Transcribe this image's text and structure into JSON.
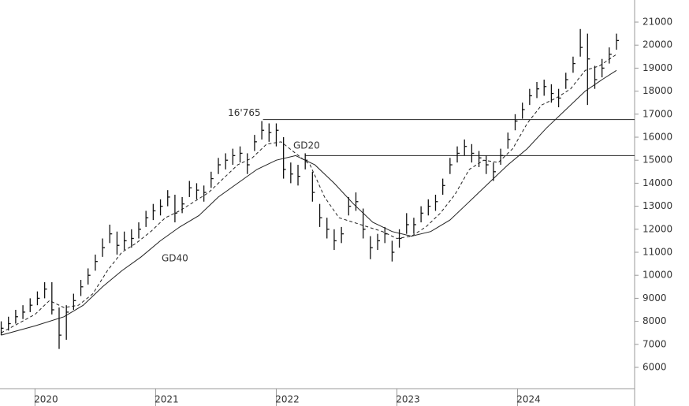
{
  "chart_data": {
    "type": "ohlc",
    "x": [
      2019.72,
      2019.78,
      2019.84,
      2019.9,
      2019.96,
      2020.02,
      2020.08,
      2020.14,
      2020.2,
      2020.26,
      2020.32,
      2020.38,
      2020.44,
      2020.5,
      2020.56,
      2020.62,
      2020.68,
      2020.74,
      2020.8,
      2020.86,
      2020.92,
      2020.98,
      2021.04,
      2021.1,
      2021.16,
      2021.22,
      2021.28,
      2021.34,
      2021.4,
      2021.46,
      2021.52,
      2021.58,
      2021.64,
      2021.7,
      2021.76,
      2021.82,
      2021.88,
      2021.94,
      2022.0,
      2022.06,
      2022.12,
      2022.18,
      2022.24,
      2022.3,
      2022.36,
      2022.42,
      2022.48,
      2022.54,
      2022.6,
      2022.66,
      2022.72,
      2022.78,
      2022.84,
      2022.9,
      2022.96,
      2023.02,
      2023.08,
      2023.14,
      2023.2,
      2023.26,
      2023.32,
      2023.38,
      2023.44,
      2023.5,
      2023.56,
      2023.62,
      2023.68,
      2023.74,
      2023.8,
      2023.86,
      2023.92,
      2023.98,
      2024.04,
      2024.1,
      2024.16,
      2024.22,
      2024.28,
      2024.34,
      2024.4,
      2024.46,
      2024.52,
      2024.58,
      2024.64,
      2024.7,
      2024.76,
      2024.82
    ],
    "high": [
      8000,
      8200,
      8500,
      8700,
      9000,
      9300,
      9700,
      9700,
      8600,
      8700,
      9200,
      9800,
      10300,
      10900,
      11600,
      12200,
      11900,
      11900,
      12000,
      12300,
      12800,
      13100,
      13300,
      13700,
      13500,
      13400,
      14100,
      14000,
      13900,
      14500,
      15100,
      15300,
      15500,
      15600,
      15300,
      16100,
      16700,
      16600,
      16600,
      16000,
      14900,
      14800,
      15300,
      14500,
      13100,
      12500,
      12000,
      12100,
      13400,
      13600,
      12900,
      11700,
      11800,
      12100,
      11500,
      12000,
      12700,
      12500,
      13000,
      13300,
      13500,
      14200,
      15100,
      15600,
      15900,
      15700,
      15400,
      15200,
      14900,
      15500,
      16200,
      17000,
      17500,
      18100,
      18400,
      18500,
      18300,
      18100,
      18800,
      19500,
      20700,
      20500,
      19100,
      19400,
      19900,
      20500
    ],
    "low": [
      7400,
      7600,
      7900,
      8100,
      8400,
      8700,
      9000,
      8300,
      6800,
      7200,
      8500,
      9100,
      9600,
      10200,
      10800,
      11400,
      10900,
      11100,
      11200,
      11600,
      12100,
      12400,
      12600,
      13000,
      12300,
      12700,
      13400,
      13300,
      13200,
      13800,
      14400,
      14600,
      14800,
      14900,
      14400,
      15400,
      15900,
      15800,
      15600,
      14200,
      14000,
      13900,
      14600,
      13200,
      12100,
      11600,
      11100,
      11400,
      12600,
      12800,
      11600,
      10700,
      11100,
      11400,
      10600,
      11200,
      11800,
      11800,
      12300,
      12600,
      12800,
      13500,
      14400,
      14900,
      15200,
      14900,
      14700,
      14400,
      14100,
      14800,
      15500,
      16300,
      16800,
      17400,
      17700,
      17800,
      17500,
      17300,
      18100,
      18800,
      19500,
      17400,
      18100,
      18600,
      19200,
      19800
    ],
    "close": [
      7700,
      7900,
      8200,
      8400,
      8700,
      9000,
      9400,
      8500,
      7400,
      8400,
      8900,
      9500,
      10000,
      10600,
      11200,
      11800,
      11300,
      11500,
      11600,
      12000,
      12500,
      12800,
      13000,
      13400,
      12700,
      13100,
      13800,
      13700,
      13600,
      14200,
      14800,
      15000,
      15200,
      15300,
      14800,
      15800,
      16300,
      16200,
      16300,
      14600,
      14400,
      14300,
      15000,
      13600,
      12500,
      12000,
      11500,
      11800,
      13000,
      13200,
      12000,
      11200,
      11500,
      11800,
      11000,
      11600,
      12200,
      12200,
      12700,
      13000,
      13200,
      13900,
      14800,
      15300,
      15600,
      15300,
      15100,
      14800,
      14500,
      15200,
      15900,
      16700,
      17200,
      17800,
      18100,
      18200,
      17900,
      17700,
      18500,
      19200,
      19900,
      19400,
      18500,
      19000,
      19600,
      20200
    ],
    "color": "#111111",
    "series": [
      {
        "name": "GD20",
        "dashed": true,
        "x": [
          2019.72,
          2020.0,
          2020.12,
          2020.24,
          2020.36,
          2020.48,
          2020.6,
          2020.72,
          2020.84,
          2020.96,
          2021.08,
          2021.2,
          2021.32,
          2021.44,
          2021.56,
          2021.68,
          2021.8,
          2021.92,
          2022.04,
          2022.16,
          2022.28,
          2022.4,
          2022.52,
          2022.64,
          2022.76,
          2022.88,
          2023.0,
          2023.12,
          2023.24,
          2023.36,
          2023.48,
          2023.6,
          2023.72,
          2023.84,
          2023.96,
          2024.08,
          2024.2,
          2024.32,
          2024.44,
          2024.56,
          2024.68,
          2024.82
        ],
        "values": [
          7500,
          8300,
          8900,
          8600,
          8700,
          9200,
          10200,
          11000,
          11400,
          11900,
          12500,
          12800,
          13200,
          13600,
          14200,
          14800,
          15100,
          15700,
          15800,
          15300,
          14800,
          13400,
          12500,
          12300,
          12100,
          11900,
          11600,
          11700,
          12100,
          12700,
          13500,
          14600,
          15000,
          14900,
          15500,
          16600,
          17400,
          17700,
          18100,
          18900,
          19100,
          19600
        ]
      },
      {
        "name": "GD40",
        "dashed": false,
        "x": [
          2019.72,
          2020.0,
          2020.24,
          2020.4,
          2020.56,
          2020.72,
          2020.88,
          2021.04,
          2021.2,
          2021.36,
          2021.52,
          2021.68,
          2021.84,
          2022.0,
          2022.16,
          2022.32,
          2022.48,
          2022.64,
          2022.8,
          2022.96,
          2023.12,
          2023.28,
          2023.44,
          2023.6,
          2023.76,
          2023.92,
          2024.08,
          2024.24,
          2024.4,
          2024.56,
          2024.7,
          2024.82
        ],
        "values": [
          7400,
          7800,
          8200,
          8700,
          9500,
          10200,
          10800,
          11500,
          12100,
          12600,
          13400,
          14000,
          14600,
          15000,
          15200,
          14800,
          14000,
          13100,
          12300,
          11900,
          11700,
          11900,
          12400,
          13200,
          14000,
          14800,
          15500,
          16400,
          17200,
          18000,
          18500,
          18900
        ]
      }
    ],
    "levels": [
      {
        "start": 2021.89,
        "value": {
          "value": 16765,
          "label": "16'765"
        }
      },
      {
        "start": 2022.24,
        "value": 15200
      }
    ],
    "xlim": [
      2019.71,
      2024.97
    ],
    "xticks": [
      2020,
      2021,
      2022,
      2023,
      2024
    ],
    "ylim": [
      5075,
      21960
    ],
    "yticks": [
      6000,
      7000,
      8000,
      9000,
      10000,
      11000,
      12000,
      13000,
      14000,
      15000,
      16000,
      17000,
      18000,
      19000,
      20000,
      21000
    ]
  }
}
